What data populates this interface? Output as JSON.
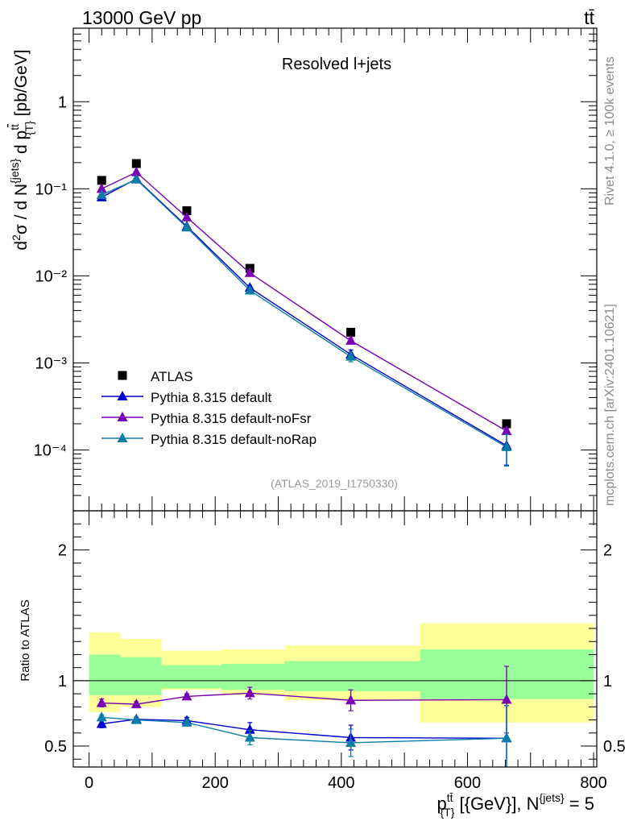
{
  "header": {
    "energy_label": "13000 GeV pp",
    "process_label": "tt̄"
  },
  "side_labels": {
    "rivet": "Rivet 4.1.0, ≥ 100k events",
    "mcplots": "mcplots.cern.ch [arXiv:2401.10621]"
  },
  "colors": {
    "atlas": "#000000",
    "default": "#0000cc",
    "noFsr": "#7a00b3",
    "noRap": "#0a7ca8",
    "band_inner": "#99ff99",
    "band_outer": "#ffff99"
  },
  "chart_data": [
    {
      "type": "scatter",
      "panel": "main",
      "title": "Resolved l+jets",
      "analysis_tag": "(ATLAS_2019_I1750330)",
      "ylabel": "d²σ / d N^{jets} d p_{T}^{tt̄} [pb/GeV]",
      "yscale": "log",
      "ylim": [
        2e-05,
        7
      ],
      "xlim": [
        -25,
        805
      ],
      "y_tick_labels": [
        "10⁻⁴",
        "10⁻³",
        "10⁻²",
        "10⁻¹",
        "1"
      ],
      "y_tick_values": [
        0.0001,
        0.001,
        0.01,
        0.1,
        1
      ],
      "legend_position": "bottom-left",
      "series": [
        {
          "name": "ATLAS",
          "marker": "square",
          "x": [
            20,
            75,
            155,
            255,
            415,
            662
          ],
          "values": [
            0.125,
            0.195,
            0.056,
            0.0122,
            0.00225,
            0.0002
          ]
        },
        {
          "name": "Pythia 8.315 default",
          "marker": "triangle",
          "x": [
            20,
            75,
            155,
            255,
            415,
            662
          ],
          "values": [
            0.08,
            0.13,
            0.037,
            0.0073,
            0.00125,
            0.000112
          ],
          "err_lo": [
            0.0762,
            0.127,
            0.0362,
            0.0069,
            0.00109,
            6.7e-05
          ],
          "err_hi": [
            0.0838,
            0.133,
            0.0378,
            0.0077,
            0.00141,
            0.000157
          ]
        },
        {
          "name": "Pythia 8.315 default-noFsr",
          "marker": "triangle",
          "x": [
            20,
            75,
            155,
            255,
            415,
            662
          ],
          "values": [
            0.1,
            0.155,
            0.047,
            0.0108,
            0.0018,
            0.000165
          ],
          "err_lo": [
            0.097,
            0.152,
            0.0465,
            0.0104,
            0.00166,
            0.000154
          ],
          "err_hi": [
            0.103,
            0.158,
            0.0475,
            0.0112,
            0.00194,
            0.000176
          ]
        },
        {
          "name": "Pythia 8.315 default-noRap",
          "marker": "triangle",
          "x": [
            20,
            75,
            155,
            255,
            415,
            662
          ],
          "values": [
            0.085,
            0.128,
            0.036,
            0.0068,
            0.00118,
            0.000108
          ],
          "err_lo": [
            0.0835,
            0.1265,
            0.0355,
            0.0064,
            0.00103,
            6.5e-05
          ],
          "err_hi": [
            0.0865,
            0.1295,
            0.0365,
            0.0072,
            0.00133,
            0.000151
          ]
        }
      ]
    },
    {
      "type": "line",
      "panel": "ratio",
      "ylabel": "Ratio to ATLAS",
      "xlabel": "p_{T}^{tt̄} [{GeV}], N^{jets} = 5",
      "ylim": [
        0.34,
        2.3
      ],
      "xlim": [
        -25,
        805
      ],
      "y_tick_labels": [
        "0.5",
        "1",
        "2"
      ],
      "y_tick_values": [
        0.5,
        1,
        2
      ],
      "x_tick_labels": [
        "0",
        "200",
        "400",
        "600",
        "800"
      ],
      "x_tick_values": [
        0,
        200,
        400,
        600,
        800
      ],
      "reference_line": 1.0,
      "bands": {
        "bins": [
          [
            0,
            50
          ],
          [
            50,
            115
          ],
          [
            115,
            210
          ],
          [
            210,
            310
          ],
          [
            310,
            525
          ],
          [
            525,
            800
          ]
        ],
        "outer_lo": [
          0.76,
          0.8,
          0.93,
          0.89,
          0.85,
          0.68
        ],
        "outer_hi": [
          1.37,
          1.32,
          1.23,
          1.24,
          1.27,
          1.44
        ],
        "inner_lo": [
          0.89,
          0.89,
          0.94,
          0.93,
          0.92,
          0.86
        ],
        "inner_hi": [
          1.2,
          1.18,
          1.12,
          1.13,
          1.15,
          1.24
        ]
      },
      "series": [
        {
          "name": "Pythia 8.315 default",
          "x": [
            20,
            75,
            155,
            255,
            415,
            662
          ],
          "values": [
            0.67,
            0.705,
            0.695,
            0.625,
            0.565,
            0.56
          ],
          "err_lo": [
            0.64,
            0.69,
            0.67,
            0.57,
            0.47,
            0.3
          ],
          "err_hi": [
            0.7,
            0.72,
            0.72,
            0.68,
            0.66,
            0.81
          ]
        },
        {
          "name": "Pythia 8.315 default-noFsr",
          "x": [
            20,
            75,
            155,
            255,
            415,
            662
          ],
          "values": [
            0.83,
            0.82,
            0.88,
            0.905,
            0.85,
            0.855
          ],
          "err_lo": [
            0.8,
            0.81,
            0.86,
            0.86,
            0.77,
            0.6
          ],
          "err_hi": [
            0.86,
            0.84,
            0.9,
            0.95,
            0.93,
            1.11
          ]
        },
        {
          "name": "Pythia 8.315 default-noRap",
          "x": [
            20,
            75,
            155,
            255,
            415,
            662
          ],
          "values": [
            0.72,
            0.7,
            0.68,
            0.565,
            0.525,
            0.56
          ],
          "err_lo": [
            0.7,
            0.685,
            0.66,
            0.51,
            0.42,
            0.3
          ],
          "err_hi": [
            0.74,
            0.715,
            0.7,
            0.62,
            0.63,
            0.81
          ]
        }
      ]
    }
  ]
}
